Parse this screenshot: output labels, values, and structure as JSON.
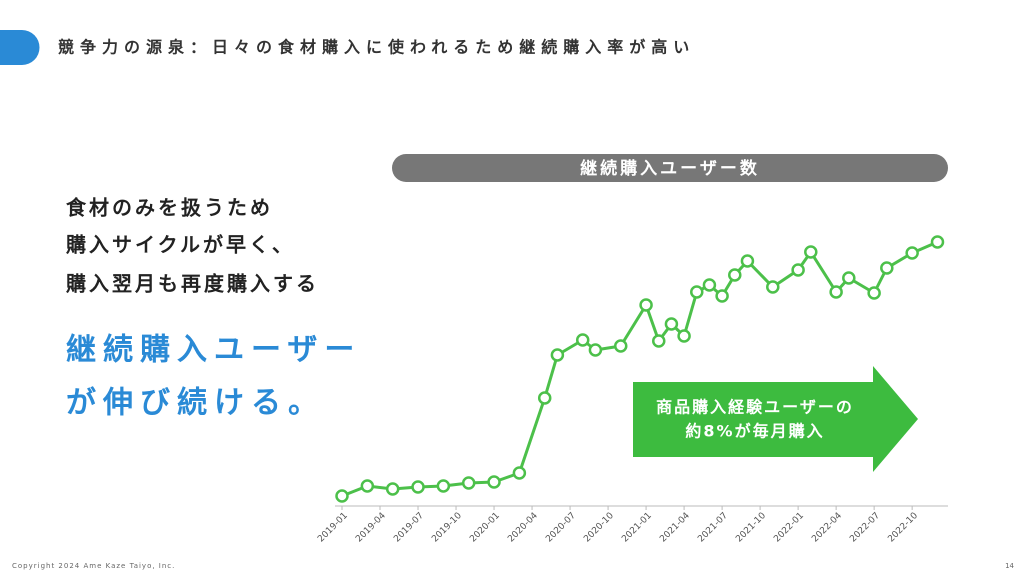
{
  "slide": {
    "title": "競争力の源泉：日々の食材購入に使われるため継続購入率が高い",
    "body_lines": [
      "食材のみを扱うため",
      "購入サイクルが早く、",
      "購入翌月も再度購入する"
    ],
    "highlight_lines": [
      "継続購入ユーザー",
      "が伸び続ける。"
    ],
    "callout_lines": [
      "商品購入経験ユーザーの",
      "約8%が毎月購入"
    ],
    "copyright": "Copyright 2024 Ame Kaze Taiyo, Inc.",
    "page_number": "14"
  },
  "chart_data": {
    "type": "line",
    "title": "継続購入ユーザー数",
    "x": [
      "2019-01",
      "2019-03",
      "2019-05",
      "2019-07",
      "2019-09",
      "2019-11",
      "2020-01",
      "2020-03",
      "2020-05",
      "2020-06",
      "2020-08",
      "2020-09",
      "2020-11",
      "2021-01",
      "2021-02",
      "2021-03",
      "2021-04",
      "2021-05",
      "2021-06",
      "2021-07",
      "2021-08",
      "2021-09",
      "2021-11",
      "2022-01",
      "2022-02",
      "2022-04",
      "2022-05",
      "2022-07",
      "2022-08",
      "2022-10",
      "2022-12"
    ],
    "series": [
      {
        "name": "継続購入ユーザー数",
        "color": "#4cc04a",
        "values": [
          10,
          20,
          17,
          19,
          20,
          23,
          24,
          33,
          108,
          151,
          166,
          156,
          160,
          201,
          165,
          182,
          170,
          214,
          221,
          210,
          231,
          245,
          219,
          236,
          254,
          214,
          228,
          213,
          238,
          253,
          264
        ]
      }
    ],
    "xticks": [
      "2019-01",
      "2019-04",
      "2019-07",
      "2019-10",
      "2020-01",
      "2020-04",
      "2020-07",
      "2020-10",
      "2021-01",
      "2021-04",
      "2021-07",
      "2021-10",
      "2022-01",
      "2022-04",
      "2022-07",
      "2022-10"
    ]
  }
}
